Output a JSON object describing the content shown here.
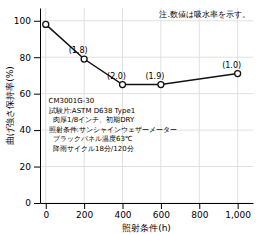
{
  "chart_data": {
    "type": "line",
    "x": [
      0,
      200,
      400,
      600,
      1000
    ],
    "values": [
      98,
      79,
      65,
      65,
      71
    ],
    "point_labels": [
      null,
      "(1.8)",
      "(2.0)",
      "(1.9)",
      "(1.0)"
    ],
    "xlabel": "照射条件(h)",
    "ylabel": "曲げ強さ保持率(%)",
    "xlim": [
      -30,
      1080
    ],
    "ylim": [
      0,
      107
    ],
    "xticks": [
      0,
      200,
      400,
      600,
      800,
      {
        "value": 1000,
        "label": "1,000"
      }
    ],
    "yticks": [
      0,
      20,
      40,
      60,
      80,
      100
    ],
    "note": "注.数値は吸水率を示す。",
    "annotation_lines": [
      "CM3001G-30",
      "試験片:ASTM D638 Type1",
      "  肉厚1/8インチ、初期DRY",
      "照射条件:サンシャインウェザーメーター",
      "  ブラックパネル温度63℃",
      "  降雨サイクル18分/120分"
    ],
    "color": "#111111",
    "marker": "circle",
    "grid": true
  }
}
